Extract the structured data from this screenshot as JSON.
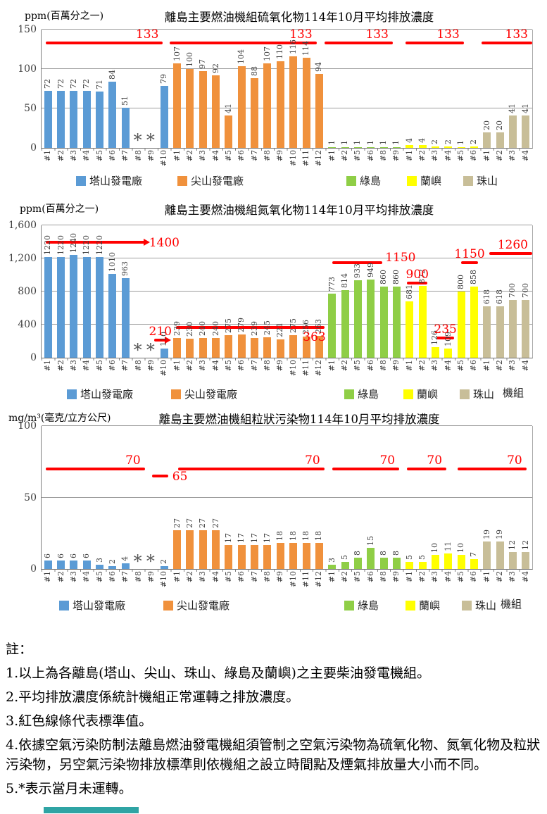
{
  "chart_data": [
    {
      "type": "bar",
      "unit": "ppm(百萬分之一)",
      "title": "離島主要燃油機組硫氧化物114年10月平均排放濃度",
      "ymax": 150,
      "yticks": [
        {
          "v": 0,
          "label": "0"
        },
        {
          "v": 50,
          "label": "50"
        },
        {
          "v": 100,
          "label": "100"
        },
        {
          "v": 150,
          "label": "150"
        }
      ],
      "axis_label": "",
      "groups": [
        {
          "name": "塔山發電廠",
          "color": "#5B9BD5",
          "labels": [
            "#1",
            "#2",
            "#3",
            "#4",
            "#5",
            "#6",
            "#7",
            "#8",
            "#9",
            "#10"
          ],
          "values": [
            72,
            72,
            72,
            72,
            71,
            84,
            51,
            "*",
            "*",
            79
          ]
        },
        {
          "name": "尖山發電廠",
          "color": "#F0913C",
          "labels": [
            "#1",
            "#2",
            "#3",
            "#4",
            "#5",
            "#6",
            "#7",
            "#8",
            "#9",
            "#10",
            "#11",
            "#12"
          ],
          "values": [
            107,
            100,
            97,
            92,
            41,
            104,
            88,
            107,
            110,
            116,
            114,
            94
          ]
        },
        {
          "name": "綠島",
          "color": "#8FCE46",
          "labels": [
            "#1",
            "#2",
            "#5",
            "#6",
            "#8",
            "#9"
          ],
          "values": [
            1,
            1,
            1,
            1,
            1,
            1
          ]
        },
        {
          "name": "蘭嶼",
          "color": "#FFFF00",
          "labels": [
            "#1",
            "#2",
            "#3",
            "#4",
            "#5",
            "#6"
          ],
          "values": [
            4,
            4,
            2,
            2,
            1,
            2
          ]
        },
        {
          "name": "珠山",
          "color": "#C8BE98",
          "labels": [
            "#1",
            "#2",
            "#3",
            "#4"
          ],
          "values": [
            20,
            20,
            41,
            41
          ]
        }
      ],
      "std_lines": [
        {
          "value": 133,
          "label": "133",
          "f": 0.3,
          "t": 9.4,
          "pos": "above-right"
        },
        {
          "value": 133,
          "label": "133",
          "f": 9.9,
          "t": 21.3,
          "pos": "above-right"
        },
        {
          "value": 133,
          "label": "133",
          "f": 21.9,
          "t": 27.2,
          "pos": "above-right"
        },
        {
          "value": 133,
          "label": "133",
          "f": 28.2,
          "t": 32.7,
          "pos": "above-right"
        },
        {
          "value": 133,
          "label": "133",
          "f": 34.1,
          "t": 38,
          "pos": "above-right"
        }
      ]
    },
    {
      "type": "bar",
      "unit": "ppm(百萬分之一)",
      "title": "離島主要燃油機組氮氧化物114年10月平均排放濃度",
      "ymax": 1600,
      "yticks": [
        {
          "v": 0,
          "label": "0"
        },
        {
          "v": 400,
          "label": "400"
        },
        {
          "v": 800,
          "label": "800"
        },
        {
          "v": 1200,
          "label": "1,200"
        },
        {
          "v": 1600,
          "label": "1,600"
        }
      ],
      "axis_label": "機組",
      "groups": [
        {
          "name": "塔山發電廠",
          "color": "#5B9BD5",
          "labels": [
            "#1",
            "#2",
            "#3",
            "#4",
            "#5",
            "#6",
            "#7",
            "#8",
            "#9",
            "#10"
          ],
          "values": [
            1220,
            1220,
            1240,
            1220,
            1220,
            1010,
            963,
            "*",
            "*",
            110
          ]
        },
        {
          "name": "尖山發電廠",
          "color": "#F0913C",
          "labels": [
            "#1",
            "#2",
            "#3",
            "#4",
            "#5",
            "#6",
            "#7",
            "#8",
            "#9",
            "#10",
            "#11",
            "#12"
          ],
          "values": [
            239,
            230,
            240,
            240,
            275,
            279,
            239,
            245,
            221,
            275,
            256,
            263
          ]
        },
        {
          "name": "綠島",
          "color": "#8FCE46",
          "labels": [
            "#1",
            "#2",
            "#5",
            "#6",
            "#8",
            "#9"
          ],
          "values": [
            773,
            814,
            933,
            949,
            860,
            860
          ]
        },
        {
          "name": "蘭嶼",
          "color": "#FFFF00",
          "labels": [
            "#1",
            "#2",
            "#3",
            "#4",
            "#5",
            "#6"
          ],
          "values": [
            681,
            872,
            126,
            109,
            800,
            858
          ]
        },
        {
          "name": "珠山",
          "color": "#C8BE98",
          "labels": [
            "#1",
            "#2",
            "#3",
            "#4"
          ],
          "values": [
            618,
            618,
            700,
            700
          ]
        }
      ],
      "std_lines": [
        {
          "value": 1400,
          "label": "1400",
          "f": 0.3,
          "t": 8.0,
          "pos": "right",
          "arrow": true
        },
        {
          "value": 210,
          "label": "210",
          "f": 8.75,
          "t": 9.65,
          "pos": "above-center",
          "arrow": true
        },
        {
          "value": 363,
          "label": "363",
          "f": 10.4,
          "t": 21.9,
          "pos": "below-right"
        },
        {
          "value": 1150,
          "label": "1150",
          "f": 22.5,
          "t": 26.4,
          "pos": "right-above"
        },
        {
          "value": 900,
          "label": "900",
          "f": 28.3,
          "t": 29.9,
          "pos": "above-center"
        },
        {
          "value": 235,
          "label": "235",
          "f": 30.6,
          "t": 31.95,
          "pos": "above-center"
        },
        {
          "value": 1150,
          "label": "1150",
          "f": 32.5,
          "t": 33.8,
          "pos": "above-center"
        },
        {
          "value": 1260,
          "label": "1260",
          "f": 34.7,
          "t": 38,
          "pos": "above-right"
        }
      ]
    },
    {
      "type": "bar",
      "unit": "mg/m³(毫克/立方公尺)",
      "title": "離島主要燃油機組粒狀污染物114年10月平均排放濃度",
      "ymax": 100,
      "yticks": [
        {
          "v": 0,
          "label": "0"
        },
        {
          "v": 50,
          "label": "50"
        },
        {
          "v": 100,
          "label": "100"
        }
      ],
      "axis_label": "機組",
      "groups": [
        {
          "name": "塔山發電廠",
          "color": "#5B9BD5",
          "labels": [
            "#1",
            "#2",
            "#3",
            "#4",
            "#5",
            "#6",
            "#7",
            "#8",
            "#9",
            "#10"
          ],
          "values": [
            6,
            6,
            6,
            6,
            3,
            2,
            4,
            "*",
            "*",
            2
          ]
        },
        {
          "name": "尖山發電廠",
          "color": "#F0913C",
          "labels": [
            "#1",
            "#2",
            "#3",
            "#4",
            "#5",
            "#6",
            "#7",
            "#8",
            "#9",
            "#10",
            "#11",
            "#12"
          ],
          "values": [
            27,
            27,
            27,
            27,
            17,
            17,
            17,
            17,
            18,
            18,
            18,
            18
          ]
        },
        {
          "name": "綠島",
          "color": "#8FCE46",
          "labels": [
            "#1",
            "#2",
            "#5",
            "#6",
            "#8",
            "#9"
          ],
          "values": [
            3,
            5,
            8,
            15,
            8,
            8
          ]
        },
        {
          "name": "蘭嶼",
          "color": "#FFFF00",
          "labels": [
            "#1",
            "#2",
            "#3",
            "#4",
            "#5",
            "#6"
          ],
          "values": [
            5,
            5,
            10,
            11,
            10,
            7
          ]
        },
        {
          "name": "珠山",
          "color": "#C8BE98",
          "labels": [
            "#1",
            "#2",
            "#3",
            "#4"
          ],
          "values": [
            19,
            19,
            12,
            12
          ]
        }
      ],
      "std_lines": [
        {
          "value": 70,
          "label": "70",
          "f": 0.3,
          "t": 8.0,
          "pos": "above-right"
        },
        {
          "value": 65,
          "label": "65",
          "f": 8.55,
          "t": 9.8,
          "pos": "right"
        },
        {
          "value": 70,
          "label": "70",
          "f": 10.55,
          "t": 21.9,
          "pos": "above-right"
        },
        {
          "value": 70,
          "label": "70",
          "f": 22.5,
          "t": 27.7,
          "pos": "above-right"
        },
        {
          "value": 70,
          "label": "70",
          "f": 28.3,
          "t": 31.35,
          "pos": "above-right"
        },
        {
          "value": 70,
          "label": "70",
          "f": 32.2,
          "t": 37.55,
          "pos": "above-right"
        }
      ]
    }
  ],
  "notes": {
    "title": "註：",
    "items": [
      "1.以上為各離島(塔山、尖山、珠山、綠島及蘭嶼)之主要柴油發電機組。",
      "2.平均排放濃度係統計機組正常運轉之排放濃度。",
      "3.紅色線條代表標準值。",
      "4.依據空氣污染防制法離島燃油發電機組須管制之空氣污染物為硫氧化物、氮氧化物及粒狀污染物，另空氣污染物排放標準則依機組之設立時間點及煙氣排放量大小而不同。",
      "5.*表示當月未運轉。"
    ]
  },
  "colors": {
    "standard_line": "#FF0000",
    "footer_bar": "#2FA4A4"
  }
}
